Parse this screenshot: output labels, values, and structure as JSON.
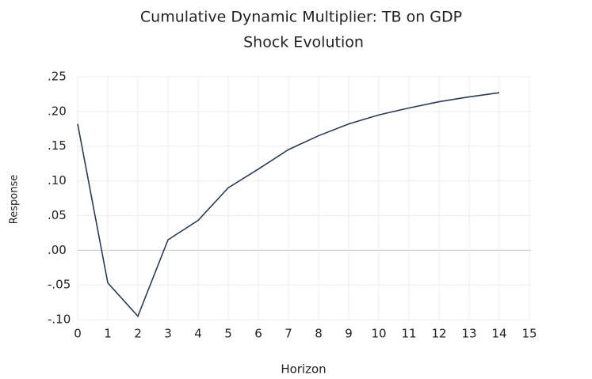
{
  "chart_data": {
    "type": "line",
    "title": "Cumulative Dynamic Multiplier: TB on GDP",
    "subtitle": "Shock Evolution",
    "x_label": "Horizon",
    "y_label": "Response",
    "x": [
      0,
      1,
      2,
      3,
      4,
      5,
      6,
      7,
      8,
      9,
      10,
      11,
      12,
      13,
      14
    ],
    "series": [
      {
        "name": "Response",
        "color": "#2b3a55",
        "values": [
          0.182,
          -0.047,
          -0.095,
          0.015,
          0.043,
          0.09,
          0.117,
          0.145,
          0.165,
          0.182,
          0.195,
          0.205,
          0.214,
          0.221,
          0.227
        ]
      }
    ],
    "xlim": [
      0,
      15
    ],
    "xticks": [
      0,
      1,
      2,
      3,
      4,
      5,
      6,
      7,
      8,
      9,
      10,
      11,
      12,
      13,
      14,
      15
    ],
    "ylim": [
      -0.1,
      0.25
    ],
    "yticks": [
      {
        "value": -0.1,
        "label": "-.10"
      },
      {
        "value": -0.05,
        "label": "-.05"
      },
      {
        "value": 0,
        "label": ".00"
      },
      {
        "value": 0.05,
        "label": ".05"
      },
      {
        "value": 0.1,
        "label": ".10"
      },
      {
        "value": 0.15,
        "label": ".15"
      },
      {
        "value": 0.2,
        "label": ".20"
      },
      {
        "value": 0.25,
        "label": ".25"
      }
    ],
    "grid": true
  }
}
